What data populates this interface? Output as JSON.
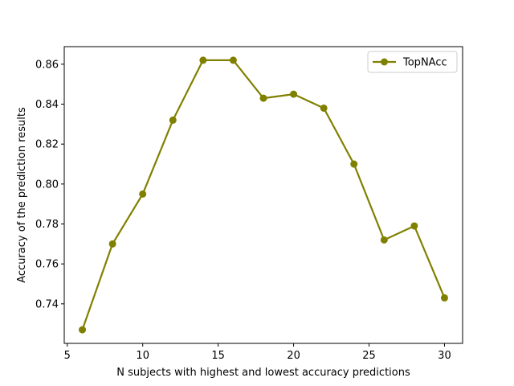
{
  "chart_data": {
    "type": "line",
    "xlabel": "N subjects with highest and lowest accuracy predictions",
    "ylabel": "Accuracy of the prediction results",
    "xlim": [
      4.8,
      31.2
    ],
    "ylim": [
      0.7202,
      0.8688
    ],
    "xticks": [
      5,
      10,
      15,
      20,
      25,
      30
    ],
    "yticks": [
      0.74,
      0.76,
      0.78,
      0.8,
      0.82,
      0.84,
      0.86
    ],
    "ytick_labels": [
      "0.74",
      "0.76",
      "0.78",
      "0.80",
      "0.82",
      "0.84",
      "0.86"
    ],
    "grid": false,
    "legend_position": "upper right",
    "series": [
      {
        "name": "TopNAcc",
        "color": "#808000",
        "marker": "circle",
        "x": [
          6,
          8,
          10,
          12,
          14,
          16,
          18,
          20,
          22,
          24,
          26,
          28,
          30
        ],
        "y": [
          0.727,
          0.77,
          0.795,
          0.832,
          0.862,
          0.862,
          0.843,
          0.845,
          0.838,
          0.81,
          0.772,
          0.779,
          0.743
        ]
      }
    ]
  }
}
